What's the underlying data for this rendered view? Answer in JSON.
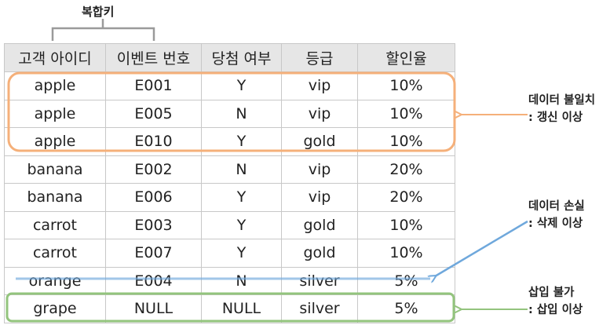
{
  "table": {
    "headers": [
      "고객 아이디",
      "이벤트 번호",
      "당첨 여부",
      "등급",
      "할인율"
    ],
    "rows": [
      [
        "apple",
        "E001",
        "Y",
        "vip",
        "10%"
      ],
      [
        "apple",
        "E005",
        "N",
        "vip",
        "10%"
      ],
      [
        "apple",
        "E010",
        "Y",
        "gold",
        "10%"
      ],
      [
        "banana",
        "E002",
        "N",
        "vip",
        "20%"
      ],
      [
        "banana",
        "E006",
        "Y",
        "vip",
        "20%"
      ],
      [
        "carrot",
        "E003",
        "Y",
        "gold",
        "10%"
      ],
      [
        "carrot",
        "E007",
        "Y",
        "gold",
        "10%"
      ],
      [
        "orange",
        "E004",
        "N",
        "silver",
        "5%"
      ],
      [
        "grape",
        "NULL",
        "NULL",
        "silver",
        "5%"
      ]
    ]
  },
  "composite_key": {
    "label": "복합키"
  },
  "annotations": {
    "update": {
      "line1": "데이터 불일치",
      "line2": ": 갱신 이상",
      "color": "#f5b07a"
    },
    "delete": {
      "line1": "데이터 손실",
      "line2": ": 삭제 이상",
      "color": "#6fa8dc"
    },
    "insert": {
      "line1": "삽입 불가",
      "line2": ": 삽입 이상",
      "color": "#93c47d"
    }
  }
}
